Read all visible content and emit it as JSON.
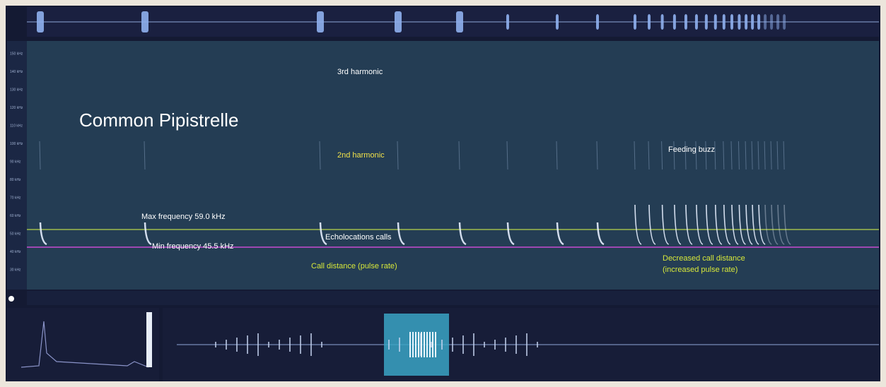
{
  "spectrogram": {
    "title": "Common Pipistrelle",
    "annotations": {
      "third_harmonic": "3rd harmonic",
      "second_harmonic": "2nd harmonic",
      "feeding_buzz": "Feeding buzz",
      "max_frequency": "Max frequency 59.0 kHz",
      "min_frequency": "Min frequency 45.5 kHz",
      "echolocation_calls": "Echolocations calls",
      "call_distance": "Call distance (pulse rate)",
      "decreased_distance_1": "Decreased call distance",
      "decreased_distance_2": "(increased pulse rate)"
    },
    "frequency_axis": [
      "150 kHz",
      "140 kHz",
      "130 kHz",
      "120 kHz",
      "110 kHz",
      "100 kHz",
      "90 kHz",
      "80 kHz",
      "70 kHz",
      "60 kHz",
      "50 kHz",
      "40 kHz",
      "30 kHz"
    ]
  }
}
